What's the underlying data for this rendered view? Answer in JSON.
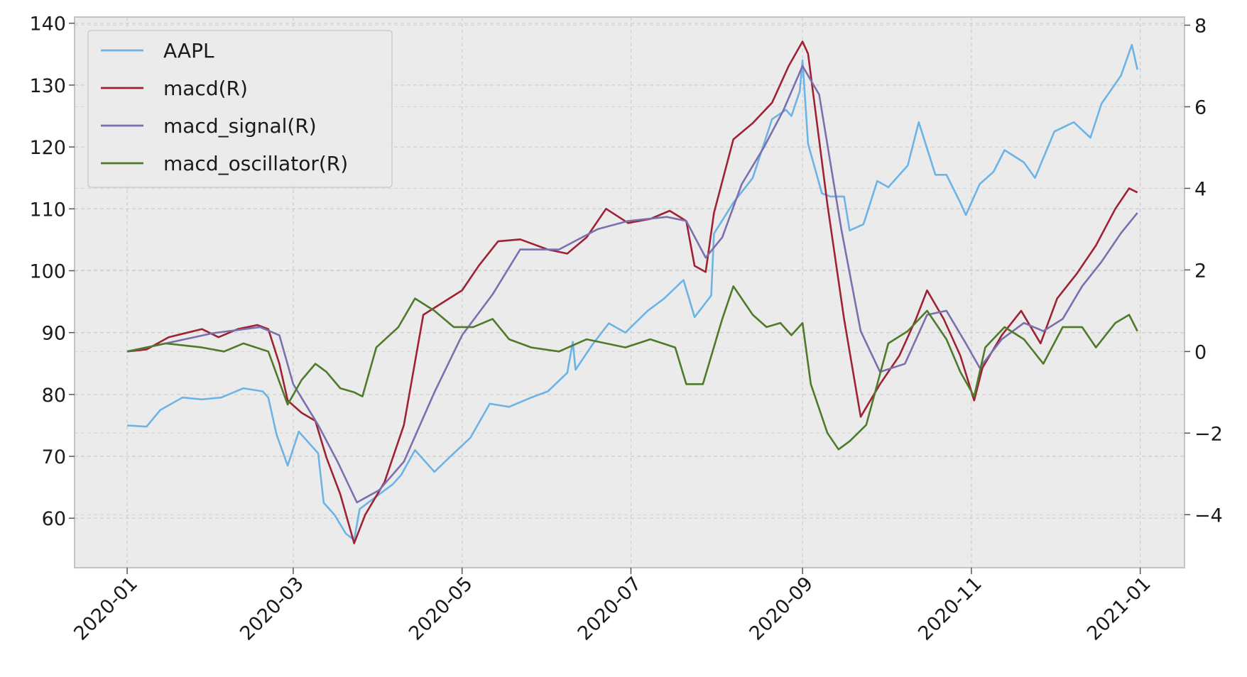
{
  "chart_data": {
    "type": "line",
    "title": "",
    "xlabel": "",
    "ylabel": "",
    "xlim": [
      "2019-12-13",
      "2021-01-17"
    ],
    "ylim": [
      52,
      141
    ],
    "y2lim": [
      -5.3,
      8.2
    ],
    "x_ticks": [
      "2020-01",
      "2020-03",
      "2020-05",
      "2020-07",
      "2020-09",
      "2020-11",
      "2021-01"
    ],
    "y_ticks": [
      "60",
      "70",
      "80",
      "90",
      "100",
      "110",
      "120",
      "130",
      "140"
    ],
    "y2_ticks": [
      "−4",
      "−2",
      "0",
      "2",
      "4",
      "6",
      "8"
    ],
    "grid": true,
    "legend_position": "top-left",
    "series": [
      {
        "name": "AAPL",
        "axis": "left",
        "color": "#6cb4e6",
        "points": [
          [
            "2020-01-01",
            75
          ],
          [
            "2020-01-08",
            74.8
          ],
          [
            "2020-01-13",
            77.5
          ],
          [
            "2020-01-21",
            79.5
          ],
          [
            "2020-01-28",
            79.2
          ],
          [
            "2020-02-04",
            79.5
          ],
          [
            "2020-02-12",
            81
          ],
          [
            "2020-02-19",
            80.5
          ],
          [
            "2020-02-21",
            79.5
          ],
          [
            "2020-02-24",
            73.5
          ],
          [
            "2020-02-28",
            68.5
          ],
          [
            "2020-03-03",
            74
          ],
          [
            "2020-03-06",
            72.5
          ],
          [
            "2020-03-10",
            70.5
          ],
          [
            "2020-03-12",
            62.5
          ],
          [
            "2020-03-16",
            60.5
          ],
          [
            "2020-03-20",
            57.5
          ],
          [
            "2020-03-23",
            56.5
          ],
          [
            "2020-03-25",
            61.5
          ],
          [
            "2020-03-31",
            63.5
          ],
          [
            "2020-04-06",
            65.5
          ],
          [
            "2020-04-09",
            67
          ],
          [
            "2020-04-14",
            71
          ],
          [
            "2020-04-21",
            67.5
          ],
          [
            "2020-04-28",
            70.5
          ],
          [
            "2020-05-04",
            73
          ],
          [
            "2020-05-11",
            78.5
          ],
          [
            "2020-05-18",
            78
          ],
          [
            "2020-05-26",
            79.5
          ],
          [
            "2020-06-01",
            80.5
          ],
          [
            "2020-06-08",
            83.5
          ],
          [
            "2020-06-10",
            88.5
          ],
          [
            "2020-06-11",
            84
          ],
          [
            "2020-06-17",
            88
          ],
          [
            "2020-06-23",
            91.5
          ],
          [
            "2020-06-29",
            90
          ],
          [
            "2020-07-07",
            93.5
          ],
          [
            "2020-07-13",
            95.5
          ],
          [
            "2020-07-20",
            98.5
          ],
          [
            "2020-07-24",
            92.5
          ],
          [
            "2020-07-30",
            96
          ],
          [
            "2020-07-31",
            106
          ],
          [
            "2020-08-07",
            111
          ],
          [
            "2020-08-14",
            115
          ],
          [
            "2020-08-21",
            124.5
          ],
          [
            "2020-08-26",
            126
          ],
          [
            "2020-08-28",
            125
          ],
          [
            "2020-08-31",
            129
          ],
          [
            "2020-09-01",
            134
          ],
          [
            "2020-09-03",
            120.5
          ],
          [
            "2020-09-08",
            112.5
          ],
          [
            "2020-09-11",
            112
          ],
          [
            "2020-09-16",
            112
          ],
          [
            "2020-09-18",
            106.5
          ],
          [
            "2020-09-23",
            107.5
          ],
          [
            "2020-09-28",
            114.5
          ],
          [
            "2020-10-02",
            113.5
          ],
          [
            "2020-10-09",
            117
          ],
          [
            "2020-10-13",
            124
          ],
          [
            "2020-10-19",
            115.5
          ],
          [
            "2020-10-23",
            115.5
          ],
          [
            "2020-10-28",
            111
          ],
          [
            "2020-10-30",
            109
          ],
          [
            "2020-11-04",
            114
          ],
          [
            "2020-11-09",
            116
          ],
          [
            "2020-11-13",
            119.5
          ],
          [
            "2020-11-20",
            117.5
          ],
          [
            "2020-11-24",
            115
          ],
          [
            "2020-12-01",
            122.5
          ],
          [
            "2020-12-08",
            124
          ],
          [
            "2020-12-14",
            121.5
          ],
          [
            "2020-12-18",
            127
          ],
          [
            "2020-12-25",
            131.5
          ],
          [
            "2020-12-29",
            136.5
          ],
          [
            "2020-12-31",
            132.5
          ]
        ]
      },
      {
        "name": "macd(R)",
        "axis": "right",
        "color": "#9e2233",
        "points": [
          [
            "2020-01-01",
            0
          ],
          [
            "2020-01-08",
            0.05
          ],
          [
            "2020-01-16",
            0.35
          ],
          [
            "2020-01-28",
            0.55
          ],
          [
            "2020-02-03",
            0.35
          ],
          [
            "2020-02-10",
            0.55
          ],
          [
            "2020-02-17",
            0.65
          ],
          [
            "2020-02-21",
            0.55
          ],
          [
            "2020-02-25",
            -0.3
          ],
          [
            "2020-02-28",
            -1.2
          ],
          [
            "2020-03-04",
            -1.5
          ],
          [
            "2020-03-09",
            -1.7
          ],
          [
            "2020-03-13",
            -2.6
          ],
          [
            "2020-03-18",
            -3.5
          ],
          [
            "2020-03-23",
            -4.7
          ],
          [
            "2020-03-27",
            -4.0
          ],
          [
            "2020-04-03",
            -3.2
          ],
          [
            "2020-04-10",
            -1.8
          ],
          [
            "2020-04-17",
            0.9
          ],
          [
            "2020-04-24",
            1.2
          ],
          [
            "2020-05-01",
            1.5
          ],
          [
            "2020-05-07",
            2.1
          ],
          [
            "2020-05-14",
            2.7
          ],
          [
            "2020-05-22",
            2.75
          ],
          [
            "2020-06-01",
            2.5
          ],
          [
            "2020-06-08",
            2.4
          ],
          [
            "2020-06-15",
            2.8
          ],
          [
            "2020-06-22",
            3.5
          ],
          [
            "2020-06-30",
            3.15
          ],
          [
            "2020-07-08",
            3.25
          ],
          [
            "2020-07-15",
            3.45
          ],
          [
            "2020-07-21",
            3.2
          ],
          [
            "2020-07-24",
            2.1
          ],
          [
            "2020-07-28",
            1.95
          ],
          [
            "2020-07-31",
            3.4
          ],
          [
            "2020-08-07",
            5.2
          ],
          [
            "2020-08-14",
            5.6
          ],
          [
            "2020-08-21",
            6.1
          ],
          [
            "2020-08-27",
            7.0
          ],
          [
            "2020-09-01",
            7.6
          ],
          [
            "2020-09-03",
            7.3
          ],
          [
            "2020-09-10",
            3.6
          ],
          [
            "2020-09-16",
            0.8
          ],
          [
            "2020-09-22",
            -1.6
          ],
          [
            "2020-09-29",
            -0.8
          ],
          [
            "2020-10-06",
            -0.1
          ],
          [
            "2020-10-12",
            0.8
          ],
          [
            "2020-10-16",
            1.5
          ],
          [
            "2020-10-22",
            0.8
          ],
          [
            "2020-10-28",
            -0.1
          ],
          [
            "2020-11-02",
            -1.2
          ],
          [
            "2020-11-05",
            -0.4
          ],
          [
            "2020-11-12",
            0.4
          ],
          [
            "2020-11-19",
            1.0
          ],
          [
            "2020-11-26",
            0.2
          ],
          [
            "2020-12-02",
            1.3
          ],
          [
            "2020-12-09",
            1.9
          ],
          [
            "2020-12-16",
            2.6
          ],
          [
            "2020-12-23",
            3.5
          ],
          [
            "2020-12-28",
            4.0
          ],
          [
            "2020-12-31",
            3.9
          ]
        ]
      },
      {
        "name": "macd_signal(R)",
        "axis": "right",
        "color": "#7b6fae",
        "points": [
          [
            "2020-01-01",
            0
          ],
          [
            "2020-01-15",
            0.2
          ],
          [
            "2020-02-01",
            0.45
          ],
          [
            "2020-02-18",
            0.6
          ],
          [
            "2020-02-25",
            0.4
          ],
          [
            "2020-03-01",
            -0.8
          ],
          [
            "2020-03-10",
            -1.8
          ],
          [
            "2020-03-17",
            -2.7
          ],
          [
            "2020-03-24",
            -3.7
          ],
          [
            "2020-04-01",
            -3.4
          ],
          [
            "2020-04-10",
            -2.7
          ],
          [
            "2020-04-21",
            -1.0
          ],
          [
            "2020-05-01",
            0.4
          ],
          [
            "2020-05-12",
            1.4
          ],
          [
            "2020-05-22",
            2.5
          ],
          [
            "2020-06-05",
            2.5
          ],
          [
            "2020-06-19",
            3.0
          ],
          [
            "2020-06-30",
            3.2
          ],
          [
            "2020-07-14",
            3.3
          ],
          [
            "2020-07-21",
            3.2
          ],
          [
            "2020-07-28",
            2.3
          ],
          [
            "2020-08-03",
            2.8
          ],
          [
            "2020-08-10",
            4.1
          ],
          [
            "2020-08-18",
            5.0
          ],
          [
            "2020-08-25",
            5.9
          ],
          [
            "2020-09-01",
            7.0
          ],
          [
            "2020-09-07",
            6.3
          ],
          [
            "2020-09-15",
            3.0
          ],
          [
            "2020-09-22",
            0.5
          ],
          [
            "2020-09-29",
            -0.5
          ],
          [
            "2020-10-08",
            -0.3
          ],
          [
            "2020-10-16",
            0.9
          ],
          [
            "2020-10-23",
            1.0
          ],
          [
            "2020-10-30",
            0.2
          ],
          [
            "2020-11-04",
            -0.4
          ],
          [
            "2020-11-12",
            0.3
          ],
          [
            "2020-11-20",
            0.7
          ],
          [
            "2020-11-27",
            0.5
          ],
          [
            "2020-12-04",
            0.8
          ],
          [
            "2020-12-11",
            1.6
          ],
          [
            "2020-12-18",
            2.2
          ],
          [
            "2020-12-25",
            2.9
          ],
          [
            "2020-12-31",
            3.4
          ]
        ]
      },
      {
        "name": "macd_oscillator(R)",
        "axis": "right",
        "color": "#4e7a2a",
        "points": [
          [
            "2020-01-01",
            0
          ],
          [
            "2020-01-15",
            0.2
          ],
          [
            "2020-01-28",
            0.1
          ],
          [
            "2020-02-05",
            0
          ],
          [
            "2020-02-12",
            0.2
          ],
          [
            "2020-02-21",
            0
          ],
          [
            "2020-02-28",
            -1.3
          ],
          [
            "2020-03-04",
            -0.7
          ],
          [
            "2020-03-09",
            -0.3
          ],
          [
            "2020-03-13",
            -0.5
          ],
          [
            "2020-03-18",
            -0.9
          ],
          [
            "2020-03-23",
            -1.0
          ],
          [
            "2020-03-26",
            -1.1
          ],
          [
            "2020-03-31",
            0.1
          ],
          [
            "2020-04-08",
            0.6
          ],
          [
            "2020-04-14",
            1.3
          ],
          [
            "2020-04-21",
            1.0
          ],
          [
            "2020-04-28",
            0.6
          ],
          [
            "2020-05-05",
            0.6
          ],
          [
            "2020-05-12",
            0.8
          ],
          [
            "2020-05-18",
            0.3
          ],
          [
            "2020-05-26",
            0.1
          ],
          [
            "2020-06-05",
            0
          ],
          [
            "2020-06-15",
            0.3
          ],
          [
            "2020-06-29",
            0.1
          ],
          [
            "2020-07-08",
            0.3
          ],
          [
            "2020-07-17",
            0.1
          ],
          [
            "2020-07-21",
            -0.8
          ],
          [
            "2020-07-27",
            -0.8
          ],
          [
            "2020-08-03",
            0.8
          ],
          [
            "2020-08-07",
            1.6
          ],
          [
            "2020-08-14",
            0.9
          ],
          [
            "2020-08-19",
            0.6
          ],
          [
            "2020-08-24",
            0.7
          ],
          [
            "2020-08-28",
            0.4
          ],
          [
            "2020-09-01",
            0.7
          ],
          [
            "2020-09-04",
            -0.8
          ],
          [
            "2020-09-10",
            -2.0
          ],
          [
            "2020-09-14",
            -2.4
          ],
          [
            "2020-09-18",
            -2.2
          ],
          [
            "2020-09-24",
            -1.8
          ],
          [
            "2020-10-02",
            0.2
          ],
          [
            "2020-10-09",
            0.5
          ],
          [
            "2020-10-16",
            1.0
          ],
          [
            "2020-10-23",
            0.3
          ],
          [
            "2020-10-28",
            -0.5
          ],
          [
            "2020-11-02",
            -1.1
          ],
          [
            "2020-11-06",
            0.1
          ],
          [
            "2020-11-13",
            0.6
          ],
          [
            "2020-11-20",
            0.3
          ],
          [
            "2020-11-27",
            -0.3
          ],
          [
            "2020-12-04",
            0.6
          ],
          [
            "2020-12-11",
            0.6
          ],
          [
            "2020-12-16",
            0.1
          ],
          [
            "2020-12-23",
            0.7
          ],
          [
            "2020-12-28",
            0.9
          ],
          [
            "2020-12-31",
            0.5
          ]
        ]
      }
    ]
  }
}
